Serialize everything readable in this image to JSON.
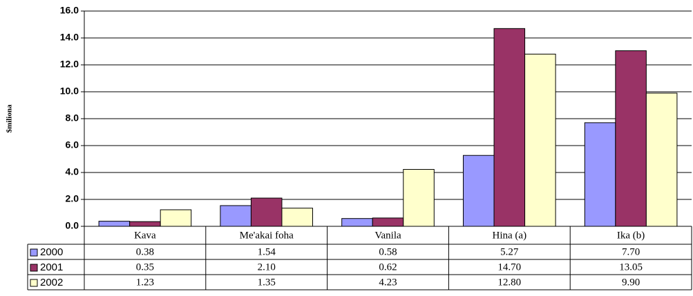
{
  "chart_data": {
    "type": "bar",
    "y_label": "$miliona",
    "categories": [
      "Kava",
      "Me'akai foha",
      "Vanila",
      "Hina (a)",
      "Ika (b)"
    ],
    "series": [
      {
        "name": "2000",
        "color": "#9999ff",
        "values": [
          0.38,
          1.54,
          0.58,
          5.27,
          7.7
        ],
        "value_labels": [
          "0.38",
          "1.54",
          "0.58",
          "5.27",
          "7.70"
        ]
      },
      {
        "name": "2001",
        "color": "#993366",
        "values": [
          0.35,
          2.1,
          0.62,
          14.7,
          13.05
        ],
        "value_labels": [
          "0.35",
          "2.10",
          "0.62",
          "14.70",
          "13.05"
        ]
      },
      {
        "name": "2002",
        "color": "#ffffcc",
        "values": [
          1.23,
          1.35,
          4.23,
          12.8,
          9.9
        ],
        "value_labels": [
          "1.23",
          "1.35",
          "4.23",
          "12.80",
          "9.90"
        ]
      }
    ],
    "ylim": [
      0,
      16
    ],
    "yticks": [
      {
        "value": 0,
        "label": "0.0"
      },
      {
        "value": 2,
        "label": "2.0"
      },
      {
        "value": 4,
        "label": "4.0"
      },
      {
        "value": 6,
        "label": "6.0"
      },
      {
        "value": 8,
        "label": "8.0"
      },
      {
        "value": 10,
        "label": "10.0"
      },
      {
        "value": 12,
        "label": "12.0"
      },
      {
        "value": 14,
        "label": "14.0"
      },
      {
        "value": 16,
        "label": "16.0"
      }
    ],
    "grid": true,
    "data_table": true
  }
}
